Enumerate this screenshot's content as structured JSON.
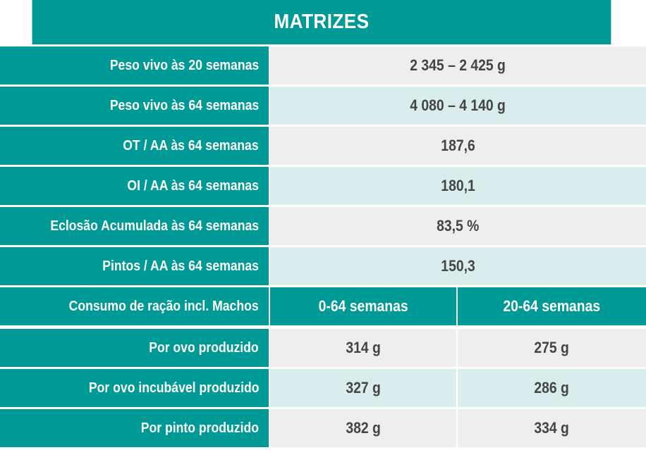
{
  "title": "MATRIZES",
  "rows": [
    {
      "label": "Peso vivo às 20 semanas",
      "value": "2 345 – 2 425 g"
    },
    {
      "label": "Peso vivo às 64 semanas",
      "value": "4 080 – 4 140 g"
    },
    {
      "label": "OT / AA às 64 semanas",
      "value": "187,6"
    },
    {
      "label": "OI / AA às 64 semanas",
      "value": "180,1"
    },
    {
      "label": "Eclosão Acumulada às 64 semanas",
      "value": "83,5 %"
    },
    {
      "label": "Pintos / AA às 64 semanas",
      "value": "150,3"
    }
  ],
  "feed": {
    "label": "Consumo de ração incl. Machos",
    "col1": "0-64 semanas",
    "col2": "20-64 semanas",
    "rows": [
      {
        "label": "Por ovo produzido",
        "v1": "314 g",
        "v2": "275 g"
      },
      {
        "label": "Por ovo incubável produzido",
        "v1": "327 g",
        "v2": "286 g"
      },
      {
        "label": "Por pinto produzido",
        "v1": "382 g",
        "v2": "334 g"
      }
    ]
  }
}
